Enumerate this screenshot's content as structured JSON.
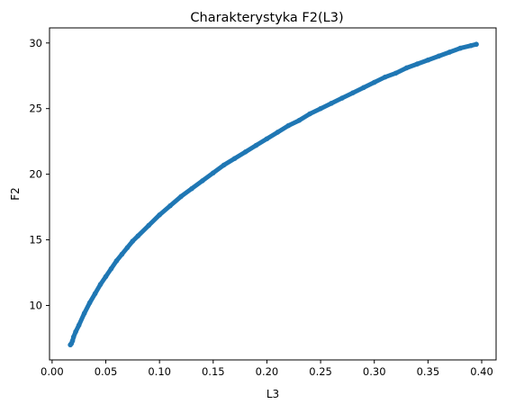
{
  "chart_data": {
    "type": "line",
    "title": "Charakterystyka F2(L3)",
    "xlabel": "L3",
    "ylabel": "F2",
    "xlim": [
      -0.0024,
      0.4134
    ],
    "ylim": [
      5.85,
      31.15
    ],
    "xticks": [
      0.0,
      0.05,
      0.1,
      0.15,
      0.2,
      0.25,
      0.3,
      0.35,
      0.4
    ],
    "xtick_labels": [
      "0.00",
      "0.05",
      "0.10",
      "0.15",
      "0.20",
      "0.25",
      "0.30",
      "0.35",
      "0.40"
    ],
    "yticks": [
      10,
      15,
      20,
      25,
      30
    ],
    "ytick_labels": [
      "10",
      "15",
      "20",
      "25",
      "30"
    ],
    "grid": false,
    "series": [
      {
        "color": "#1f77b4",
        "x": [
          0.017,
          0.018,
          0.019,
          0.02,
          0.022,
          0.025,
          0.03,
          0.035,
          0.04,
          0.045,
          0.05,
          0.055,
          0.06,
          0.065,
          0.07,
          0.075,
          0.08,
          0.09,
          0.1,
          0.11,
          0.12,
          0.13,
          0.14,
          0.15,
          0.16,
          0.17,
          0.18,
          0.19,
          0.2,
          0.21,
          0.22,
          0.23,
          0.24,
          0.25,
          0.26,
          0.27,
          0.28,
          0.29,
          0.3,
          0.31,
          0.32,
          0.33,
          0.34,
          0.35,
          0.36,
          0.37,
          0.38,
          0.39,
          0.395
        ],
        "y": [
          7.0,
          7.1,
          7.3,
          7.6,
          8.0,
          8.5,
          9.4,
          10.2,
          10.9,
          11.6,
          12.2,
          12.8,
          13.4,
          13.9,
          14.4,
          14.9,
          15.3,
          16.1,
          16.9,
          17.6,
          18.3,
          18.9,
          19.5,
          20.1,
          20.7,
          21.2,
          21.7,
          22.2,
          22.7,
          23.2,
          23.7,
          24.1,
          24.6,
          25.0,
          25.4,
          25.8,
          26.2,
          26.6,
          27.0,
          27.4,
          27.7,
          28.1,
          28.4,
          28.7,
          29.0,
          29.3,
          29.6,
          29.8,
          29.9
        ]
      }
    ]
  }
}
